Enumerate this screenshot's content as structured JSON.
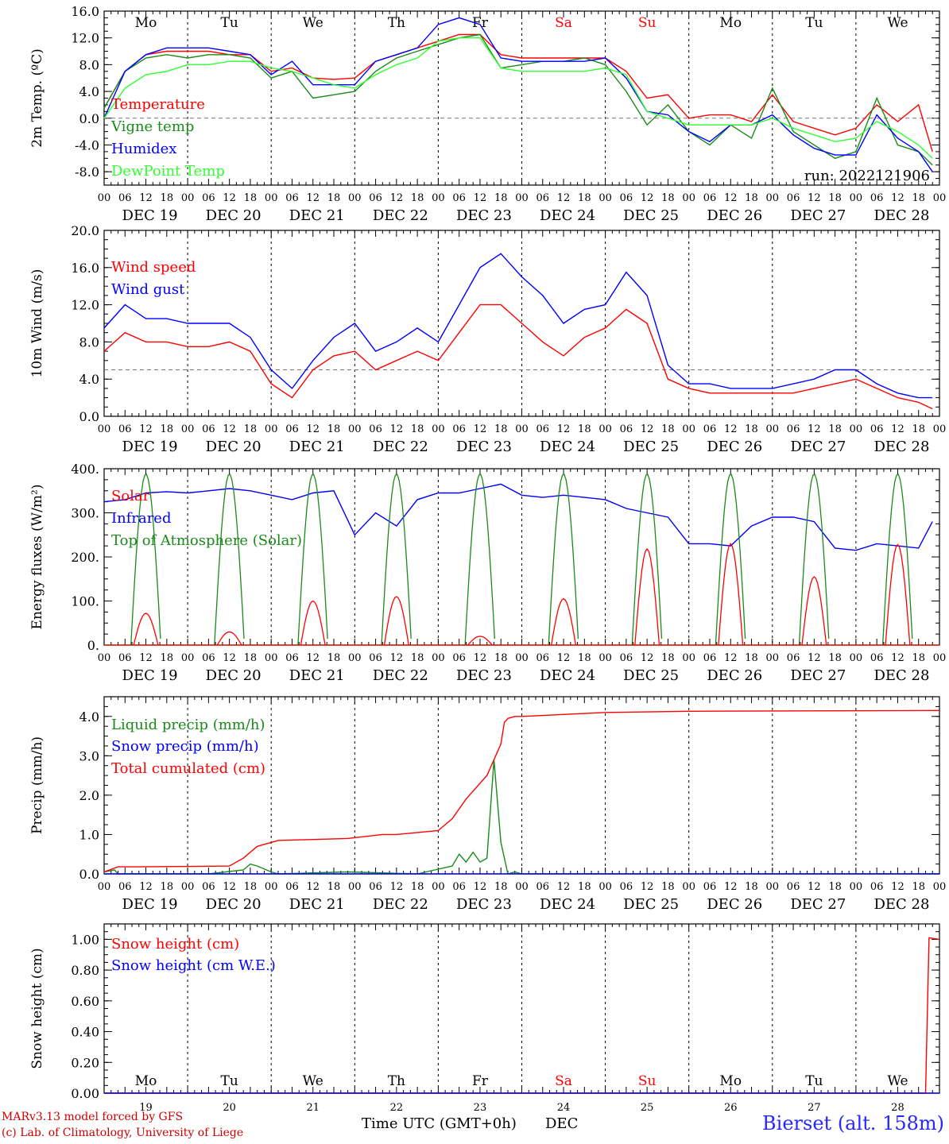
{
  "chart_data": [
    {
      "type": "line",
      "ylabel": "2m Temp. (ºC)",
      "ylim": [
        -10,
        16
      ],
      "yticks": [
        "-8.0",
        "-4.0",
        "0.0",
        "4.0",
        "8.0",
        "12.0",
        "16.0"
      ],
      "ytick_values": [
        -8,
        -4,
        0,
        4,
        8,
        12,
        16
      ],
      "reference_line": 0,
      "x_hours_unit": "hours since DEC 19 00 UTC",
      "day_names": [
        "Mo",
        "Tu",
        "We",
        "Th",
        "Fr",
        "Sa",
        "Su",
        "Mo",
        "Tu",
        "We"
      ],
      "weekend_indices": [
        5,
        6
      ],
      "date_labels": [
        "DEC 19",
        "DEC 20",
        "DEC 21",
        "DEC 22",
        "DEC 23",
        "DEC 24",
        "DEC 25",
        "DEC 26",
        "DEC 27",
        "DEC 28"
      ],
      "run_label": "run: 2022121906",
      "series": [
        {
          "name": "Temperature",
          "color": "#ff0000",
          "x": [
            0,
            6,
            12,
            18,
            24,
            30,
            36,
            42,
            48,
            54,
            60,
            66,
            72,
            78,
            84,
            90,
            96,
            102,
            108,
            114,
            120,
            126,
            132,
            138,
            144,
            150,
            156,
            162,
            168,
            174,
            180,
            186,
            192,
            198,
            204,
            210,
            216,
            222,
            228,
            234,
            238
          ],
          "y": [
            1.5,
            7.0,
            9.5,
            10.0,
            10.0,
            10.0,
            9.5,
            9.5,
            7.0,
            7.5,
            6.0,
            5.8,
            6.0,
            8.5,
            9.5,
            10.5,
            11.5,
            12.5,
            12.5,
            9.5,
            9.0,
            9.0,
            9.0,
            9.0,
            9.0,
            7.0,
            3.0,
            3.5,
            0.0,
            0.5,
            0.5,
            -0.5,
            3.5,
            -0.5,
            -1.5,
            -2.5,
            -1.5,
            2.0,
            -0.5,
            2.0,
            -5.0
          ]
        },
        {
          "name": "Vigne temp",
          "color": "#1a8a1a",
          "x": [
            0,
            6,
            12,
            18,
            24,
            30,
            36,
            42,
            48,
            54,
            60,
            66,
            72,
            78,
            84,
            90,
            96,
            102,
            108,
            114,
            120,
            126,
            132,
            138,
            144,
            150,
            156,
            162,
            168,
            174,
            180,
            186,
            192,
            198,
            204,
            210,
            216,
            222,
            228,
            234,
            238
          ],
          "y": [
            1.5,
            7.0,
            9.0,
            9.5,
            9.0,
            9.5,
            9.5,
            9.0,
            6.0,
            7.0,
            3.0,
            3.5,
            4.0,
            7.0,
            9.0,
            10.0,
            11.0,
            12.0,
            12.5,
            7.5,
            8.0,
            8.5,
            8.5,
            9.0,
            8.0,
            4.0,
            -1.0,
            2.0,
            -2.0,
            -4.0,
            -1.0,
            -3.0,
            4.5,
            -2.0,
            -4.0,
            -6.0,
            -5.0,
            3.0,
            -4.0,
            -5.0,
            -7.0
          ]
        },
        {
          "name": "Humidex",
          "color": "#0000ff",
          "x": [
            0,
            6,
            12,
            18,
            24,
            30,
            36,
            42,
            48,
            54,
            60,
            66,
            72,
            78,
            84,
            90,
            96,
            102,
            108,
            114,
            120,
            126,
            132,
            138,
            144,
            150,
            156,
            162,
            168,
            174,
            180,
            186,
            192,
            198,
            204,
            210,
            216,
            222,
            228,
            234,
            238
          ],
          "y": [
            0.0,
            7.0,
            9.5,
            10.5,
            10.5,
            10.5,
            10.0,
            9.5,
            6.5,
            8.5,
            5.0,
            5.0,
            5.0,
            8.5,
            9.5,
            10.5,
            14.0,
            15.0,
            14.0,
            9.0,
            8.5,
            8.5,
            8.5,
            8.5,
            9.0,
            6.0,
            1.0,
            0.5,
            -2.0,
            -3.5,
            -1.0,
            -1.0,
            0.5,
            -2.5,
            -4.5,
            -5.5,
            -5.5,
            0.5,
            -3.0,
            -5.0,
            -8.0
          ]
        },
        {
          "name": "DewPoint Temp",
          "color": "#30ff30",
          "x": [
            0,
            6,
            12,
            18,
            24,
            30,
            36,
            42,
            48,
            54,
            60,
            66,
            72,
            78,
            84,
            90,
            96,
            102,
            108,
            114,
            120,
            126,
            132,
            138,
            144,
            150,
            156,
            162,
            168,
            174,
            180,
            186,
            192,
            198,
            204,
            210,
            216,
            222,
            228,
            234,
            238
          ],
          "y": [
            0.0,
            4.5,
            6.5,
            7.0,
            8.0,
            8.0,
            8.5,
            8.5,
            7.5,
            7.0,
            6.0,
            5.0,
            4.5,
            6.5,
            8.0,
            9.0,
            11.5,
            12.0,
            12.0,
            7.5,
            7.0,
            7.0,
            7.0,
            7.0,
            7.5,
            6.5,
            1.0,
            0.0,
            -1.0,
            -1.0,
            -1.0,
            -1.0,
            0.0,
            -1.5,
            -2.5,
            -3.5,
            -3.0,
            -0.5,
            -2.0,
            -4.0,
            -6.0
          ]
        }
      ]
    },
    {
      "type": "line",
      "ylabel": "10m Wind (m/s)",
      "ylim": [
        0,
        20
      ],
      "yticks": [
        "0.0",
        "4.0",
        "8.0",
        "12.0",
        "16.0",
        "20.0"
      ],
      "ytick_values": [
        0,
        4,
        8,
        12,
        16,
        20
      ],
      "reference_line": 5,
      "date_labels": [
        "DEC 19",
        "DEC 20",
        "DEC 21",
        "DEC 22",
        "DEC 23",
        "DEC 24",
        "DEC 25",
        "DEC 26",
        "DEC 27",
        "DEC 28"
      ],
      "series": [
        {
          "name": "Wind speed",
          "color": "#ff0000",
          "x": [
            0,
            6,
            12,
            18,
            24,
            30,
            36,
            42,
            48,
            54,
            60,
            66,
            72,
            78,
            84,
            90,
            96,
            102,
            108,
            114,
            120,
            126,
            132,
            138,
            144,
            150,
            156,
            162,
            168,
            174,
            180,
            186,
            192,
            198,
            204,
            210,
            216,
            222,
            228,
            234,
            238
          ],
          "y": [
            7.0,
            9.0,
            8.0,
            8.0,
            7.5,
            7.5,
            8.0,
            7.0,
            3.5,
            2.0,
            5.0,
            6.5,
            7.0,
            5.0,
            6.0,
            7.0,
            6.0,
            9.0,
            12.0,
            12.0,
            10.0,
            8.0,
            6.5,
            8.5,
            9.5,
            11.5,
            10.0,
            4.0,
            3.0,
            2.5,
            2.5,
            2.5,
            2.5,
            2.5,
            3.0,
            3.5,
            4.0,
            3.0,
            2.0,
            1.5,
            0.8
          ]
        },
        {
          "name": "Wind gust",
          "color": "#0000ff",
          "x": [
            0,
            6,
            12,
            18,
            24,
            30,
            36,
            42,
            48,
            54,
            60,
            66,
            72,
            78,
            84,
            90,
            96,
            102,
            108,
            114,
            120,
            126,
            132,
            138,
            144,
            150,
            156,
            162,
            168,
            174,
            180,
            186,
            192,
            198,
            204,
            210,
            216,
            222,
            228,
            234,
            238
          ],
          "y": [
            9.5,
            12.0,
            10.5,
            10.5,
            10.0,
            10.0,
            10.0,
            8.5,
            5.0,
            3.0,
            6.0,
            8.5,
            10.0,
            7.0,
            8.0,
            9.5,
            8.0,
            12.0,
            16.0,
            17.5,
            15.0,
            13.0,
            10.0,
            11.5,
            12.0,
            15.5,
            13.0,
            5.5,
            3.5,
            3.5,
            3.0,
            3.0,
            3.0,
            3.5,
            4.0,
            5.0,
            5.0,
            3.5,
            2.5,
            2.0,
            2.0
          ]
        }
      ]
    },
    {
      "type": "line",
      "ylabel": "Energy fluxes (W/m²)",
      "ylim": [
        0,
        400
      ],
      "yticks": [
        "0.",
        "100.",
        "200.",
        "300.",
        "400."
      ],
      "ytick_values": [
        0,
        100,
        200,
        300,
        400
      ],
      "date_labels": [
        "DEC 19",
        "DEC 20",
        "DEC 21",
        "DEC 22",
        "DEC 23",
        "DEC 24",
        "DEC 25",
        "DEC 26",
        "DEC 27",
        "DEC 28"
      ],
      "solar_daily_peak": [
        72,
        30,
        100,
        110,
        20,
        105,
        218,
        230,
        155,
        228
      ],
      "toa_daily_peak": [
        388,
        388,
        388,
        388,
        388,
        388,
        388,
        388,
        388,
        388
      ],
      "series": [
        {
          "name": "Solar",
          "color": "#ff0000"
        },
        {
          "name": "Infrared",
          "color": "#0000ff",
          "x": [
            0,
            6,
            12,
            18,
            24,
            30,
            36,
            42,
            48,
            54,
            60,
            66,
            72,
            78,
            84,
            90,
            96,
            102,
            108,
            114,
            120,
            126,
            132,
            138,
            144,
            150,
            156,
            162,
            168,
            174,
            180,
            186,
            192,
            198,
            204,
            210,
            216,
            222,
            228,
            234,
            238
          ],
          "y": [
            325,
            330,
            345,
            348,
            345,
            350,
            355,
            350,
            340,
            330,
            345,
            350,
            250,
            300,
            270,
            330,
            345,
            345,
            355,
            365,
            340,
            335,
            340,
            335,
            330,
            310,
            300,
            290,
            230,
            230,
            225,
            270,
            290,
            290,
            280,
            220,
            215,
            230,
            225,
            220,
            280
          ]
        },
        {
          "name": "Top of Atmosphere (Solar)",
          "color": "#1a8a1a"
        }
      ]
    },
    {
      "type": "line",
      "ylabel": "Precip (mm/h)",
      "ylim": [
        0,
        4.5
      ],
      "yticks": [
        "0.0",
        "1.0",
        "2.0",
        "3.0",
        "4.0"
      ],
      "ytick_values": [
        0,
        1,
        2,
        3,
        4
      ],
      "date_labels": [
        "DEC 19",
        "DEC 20",
        "DEC 21",
        "DEC 22",
        "DEC 23",
        "DEC 24",
        "DEC 25",
        "DEC 26",
        "DEC 27",
        "DEC 28"
      ],
      "series": [
        {
          "name": "Liquid precip (mm/h)",
          "color": "#1a8a1a",
          "x": [
            0,
            3,
            4,
            10,
            30,
            40,
            42,
            44,
            48,
            50,
            70,
            90,
            95,
            100,
            102,
            104,
            106,
            108,
            110,
            112,
            114,
            116,
            118,
            120,
            240
          ],
          "y": [
            0.05,
            0.1,
            0.0,
            0.0,
            0.0,
            0.1,
            0.25,
            0.2,
            0.05,
            0.0,
            0.05,
            0.0,
            0.1,
            0.2,
            0.5,
            0.3,
            0.55,
            0.3,
            0.4,
            2.9,
            0.8,
            0.0,
            0.05,
            0.0,
            0.0
          ]
        },
        {
          "name": "Snow precip (mm/h)",
          "color": "#0000ff",
          "x": [
            0,
            240
          ],
          "y": [
            0,
            0
          ]
        },
        {
          "name": "Total cumulated (cm)",
          "color": "#ff0000",
          "x": [
            0,
            4,
            10,
            36,
            40,
            44,
            48,
            50,
            70,
            80,
            84,
            96,
            100,
            104,
            110,
            114,
            115,
            116,
            118,
            120,
            144,
            168,
            240
          ],
          "y": [
            0.05,
            0.18,
            0.18,
            0.2,
            0.4,
            0.7,
            0.8,
            0.85,
            0.9,
            1.0,
            1.0,
            1.1,
            1.4,
            1.9,
            2.5,
            3.3,
            3.85,
            3.95,
            4.0,
            4.0,
            4.1,
            4.13,
            4.15
          ]
        }
      ]
    },
    {
      "type": "line",
      "ylabel": "Snow height (cm)",
      "ylim": [
        0,
        1.1
      ],
      "yticks": [
        "0.00",
        "0.20",
        "0.40",
        "0.60",
        "0.80",
        "1.00"
      ],
      "ytick_values": [
        0,
        0.2,
        0.4,
        0.6,
        0.8,
        1.0
      ],
      "day_names": [
        "Mo",
        "Tu",
        "We",
        "Th",
        "Fr",
        "Sa",
        "Su",
        "Mo",
        "Tu",
        "We"
      ],
      "weekend_indices": [
        5,
        6
      ],
      "day_numbers": [
        "19",
        "20",
        "21",
        "22",
        "23",
        "24",
        "25",
        "26",
        "27",
        "28"
      ],
      "series": [
        {
          "name": "Snow height (cm)",
          "color": "#ff0000",
          "x": [
            0,
            236,
            237,
            240
          ],
          "y": [
            0,
            0,
            1.01,
            1.0
          ]
        },
        {
          "name": "Snow height (cm W.E.)",
          "color": "#0000ff",
          "x": [
            0,
            240
          ],
          "y": [
            0,
            0
          ]
        }
      ]
    }
  ],
  "hour_labels": [
    "00",
    "06",
    "12",
    "18"
  ],
  "footer": {
    "model": "MARv3.13 model forced by GFS",
    "credit": "(c) Lab. of Climatology, University of Liege",
    "xaxis": "Time UTC (GMT+0h)",
    "month": "DEC",
    "station": "Bierset (alt. 158m)"
  }
}
